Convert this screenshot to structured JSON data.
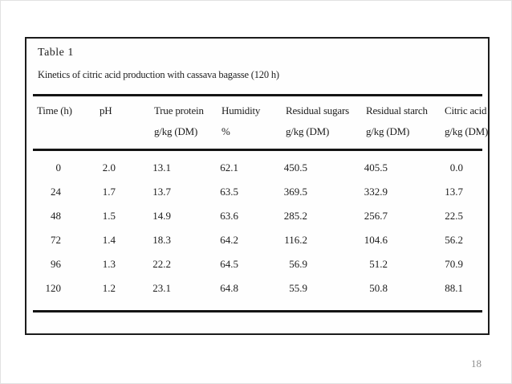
{
  "page_number": "18",
  "table": {
    "label": "Table 1",
    "caption": "Kinetics of citric acid production with cassava bagasse (120 h)",
    "columns": [
      {
        "name": "Time (h)",
        "unit": ""
      },
      {
        "name": "pH",
        "unit": ""
      },
      {
        "name": "True protein",
        "unit": "g/kg (DM)"
      },
      {
        "name": "Humidity",
        "unit": "%"
      },
      {
        "name": "Residual sugars",
        "unit": "g/kg (DM)"
      },
      {
        "name": "Residual starch",
        "unit": "g/kg (DM)"
      },
      {
        "name": "Citric acid",
        "unit": "g/kg (DM)"
      }
    ],
    "rows": [
      [
        "0",
        "2.0",
        "13.1",
        "62.1",
        "450.5",
        "405.5",
        "0.0"
      ],
      [
        "24",
        "1.7",
        "13.7",
        "63.5",
        "369.5",
        "332.9",
        "13.7"
      ],
      [
        "48",
        "1.5",
        "14.9",
        "63.6",
        "285.2",
        "256.7",
        "22.5"
      ],
      [
        "72",
        "1.4",
        "18.3",
        "64.2",
        "116.2",
        "104.6",
        "56.2"
      ],
      [
        "96",
        "1.3",
        "22.2",
        "64.5",
        "56.9",
        "51.2",
        "70.9"
      ],
      [
        "120",
        "1.2",
        "23.1",
        "64.8",
        "55.9",
        "50.8",
        "88.1"
      ]
    ]
  },
  "colors": {
    "rule": "#141414",
    "text": "#1c1c1c",
    "page_number": "#8f8f8f"
  }
}
